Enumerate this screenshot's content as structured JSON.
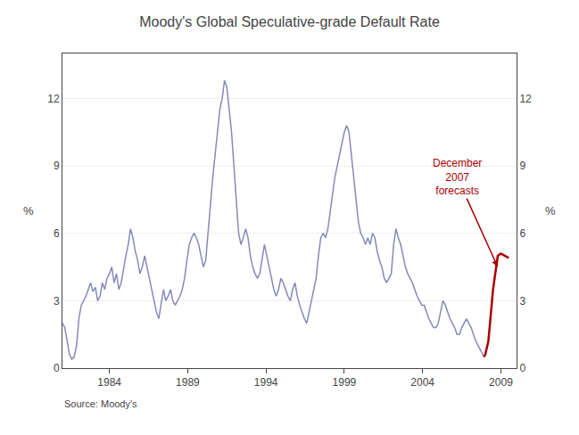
{
  "chart_data": {
    "type": "line",
    "title": "Moody's Global Speculative-grade Default Rate",
    "ylabel": "%",
    "y2label": "%",
    "source": "Source: Moody's",
    "annotation": "December\n2007\nforecasts",
    "xlim": [
      1981.0,
      2010.0
    ],
    "xticks": [
      1984,
      1989,
      1994,
      1999,
      2004,
      2009
    ],
    "ylim": [
      0,
      14
    ],
    "yticks": [
      0,
      3,
      6,
      9,
      12
    ],
    "y2lim": [
      0,
      14
    ],
    "y2ticks": [
      0,
      3,
      6,
      9,
      12
    ],
    "grid": true,
    "series": [
      {
        "color": "#8888bb",
        "x": [
          1981,
          1981.15,
          1981.3,
          1981.45,
          1981.6,
          1981.75,
          1981.9,
          1982.05,
          1982.2,
          1982.35,
          1982.5,
          1982.65,
          1982.8,
          1982.95,
          1983.1,
          1983.25,
          1983.4,
          1983.55,
          1983.7,
          1983.85,
          1984,
          1984.15,
          1984.3,
          1984.45,
          1984.6,
          1984.75,
          1984.9,
          1985.05,
          1985.2,
          1985.35,
          1985.5,
          1985.65,
          1985.8,
          1985.95,
          1986.1,
          1986.25,
          1986.4,
          1986.55,
          1986.7,
          1986.85,
          1987,
          1987.15,
          1987.3,
          1987.45,
          1987.6,
          1987.75,
          1987.9,
          1988.05,
          1988.2,
          1988.35,
          1988.5,
          1988.65,
          1988.8,
          1988.95,
          1989.1,
          1989.25,
          1989.4,
          1989.55,
          1989.7,
          1989.85,
          1990,
          1990.15,
          1990.3,
          1990.45,
          1990.6,
          1990.75,
          1990.9,
          1991.05,
          1991.2,
          1991.35,
          1991.5,
          1991.65,
          1991.8,
          1991.95,
          1992.1,
          1992.25,
          1992.4,
          1992.55,
          1992.7,
          1992.85,
          1993,
          1993.15,
          1993.3,
          1993.45,
          1993.6,
          1993.75,
          1993.9,
          1994.05,
          1994.2,
          1994.35,
          1994.5,
          1994.65,
          1994.8,
          1994.95,
          1995.1,
          1995.25,
          1995.4,
          1995.55,
          1995.7,
          1995.85,
          1996,
          1996.15,
          1996.3,
          1996.45,
          1996.6,
          1996.75,
          1996.9,
          1997.05,
          1997.2,
          1997.35,
          1997.5,
          1997.65,
          1997.8,
          1997.95,
          1998.1,
          1998.25,
          1998.4,
          1998.55,
          1998.7,
          1998.85,
          1999,
          1999.15,
          1999.3,
          1999.45,
          1999.6,
          1999.75,
          1999.9,
          2000.05,
          2000.2,
          2000.35,
          2000.5,
          2000.65,
          2000.8,
          2000.95,
          2001.1,
          2001.25,
          2001.4,
          2001.55,
          2001.7,
          2001.85,
          2002,
          2002.15,
          2002.3,
          2002.45,
          2002.6,
          2002.75,
          2002.9,
          2003.05,
          2003.2,
          2003.35,
          2003.5,
          2003.65,
          2003.8,
          2003.95,
          2004.1,
          2004.25,
          2004.4,
          2004.55,
          2004.7,
          2004.85,
          2005,
          2005.15,
          2005.3,
          2005.45,
          2005.6,
          2005.75,
          2005.9,
          2006.05,
          2006.2,
          2006.35,
          2006.5,
          2006.65,
          2006.8,
          2006.95,
          2007.1,
          2007.25,
          2007.4,
          2007.55,
          2007.7,
          2007.85,
          2008
        ],
        "values": [
          2.0,
          1.8,
          1.2,
          0.6,
          0.4,
          0.5,
          1.0,
          2.2,
          2.8,
          3.0,
          3.2,
          3.5,
          3.8,
          3.4,
          3.6,
          3.0,
          3.2,
          3.8,
          3.5,
          4.0,
          4.2,
          4.5,
          3.8,
          4.2,
          3.5,
          3.8,
          4.5,
          5.0,
          5.5,
          6.2,
          5.8,
          5.2,
          4.8,
          4.2,
          4.5,
          5.0,
          4.5,
          4.0,
          3.5,
          3.0,
          2.5,
          2.2,
          2.8,
          3.5,
          3.0,
          3.2,
          3.5,
          3.0,
          2.8,
          3.0,
          3.2,
          3.5,
          4.0,
          4.8,
          5.5,
          5.8,
          6.0,
          5.8,
          5.5,
          5.0,
          4.5,
          4.8,
          6.0,
          7.5,
          8.5,
          9.5,
          10.5,
          11.5,
          12.0,
          12.8,
          12.5,
          11.5,
          10.5,
          9.0,
          7.5,
          6.0,
          5.5,
          5.8,
          6.2,
          5.8,
          5.0,
          4.5,
          4.2,
          4.0,
          4.2,
          4.8,
          5.5,
          5.0,
          4.5,
          4.0,
          3.5,
          3.2,
          3.5,
          4.0,
          3.8,
          3.5,
          3.2,
          3.0,
          3.5,
          3.8,
          3.2,
          2.8,
          2.5,
          2.2,
          2.0,
          2.5,
          3.0,
          3.5,
          4.0,
          5.0,
          5.8,
          6.0,
          5.8,
          6.2,
          7.0,
          7.8,
          8.5,
          9.0,
          9.5,
          10.0,
          10.5,
          10.8,
          10.5,
          9.5,
          8.5,
          7.5,
          6.5,
          6.0,
          5.8,
          5.5,
          5.8,
          5.5,
          6.0,
          5.8,
          5.2,
          4.8,
          4.5,
          4.0,
          3.8,
          4.0,
          4.2,
          5.5,
          6.2,
          5.8,
          5.5,
          5.0,
          4.5,
          4.2,
          4.0,
          3.8,
          3.5,
          3.2,
          3.0,
          2.8,
          2.8,
          2.5,
          2.2,
          2.0,
          1.8,
          1.8,
          2.0,
          2.5,
          3.0,
          2.8,
          2.5,
          2.2,
          2.0,
          1.8,
          1.5,
          1.5,
          1.8,
          2.0,
          2.2,
          2.0,
          1.8,
          1.5,
          1.2,
          1.0,
          0.8,
          0.6,
          0.5
        ]
      },
      {
        "color": "#aa0000",
        "x": [
          2007.9,
          2008.0,
          2008.2,
          2008.5,
          2008.8,
          2009.0,
          2009.25,
          2009.5
        ],
        "values": [
          0.5,
          0.6,
          1.2,
          3.5,
          5.0,
          5.1,
          5.0,
          4.9
        ]
      }
    ]
  }
}
